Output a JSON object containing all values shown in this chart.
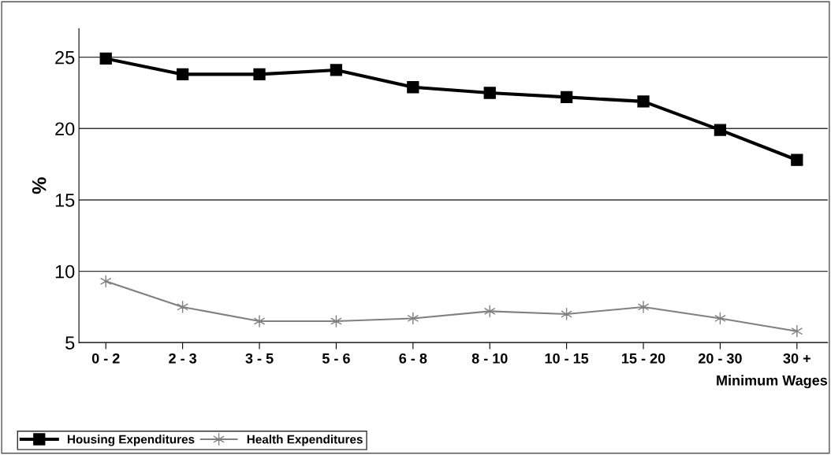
{
  "chart_data": {
    "type": "line",
    "ylabel": "%",
    "xlabel": "Minimum Wages",
    "categories": [
      "0 - 2",
      "2 - 3",
      "3 - 5",
      "5 - 6",
      "6 - 8",
      "8 - 10",
      "10 - 15",
      "15 - 20",
      "20 - 30",
      "30 +"
    ],
    "series": [
      {
        "name": "Housing Expenditures",
        "color": "#000000",
        "marker": "square",
        "values": [
          24.9,
          23.8,
          23.8,
          24.1,
          22.9,
          22.5,
          22.2,
          21.9,
          19.9,
          17.8
        ]
      },
      {
        "name": "Health Expenditures",
        "color": "#808080",
        "marker": "cross",
        "values": [
          9.3,
          7.5,
          6.5,
          6.5,
          6.7,
          7.2,
          7.0,
          7.5,
          6.7,
          5.8
        ]
      }
    ],
    "ylim": [
      5,
      27
    ],
    "yticks": [
      5,
      10,
      15,
      20,
      25
    ],
    "grid": "y",
    "legend": "bottom left",
    "line_style": "solid"
  }
}
